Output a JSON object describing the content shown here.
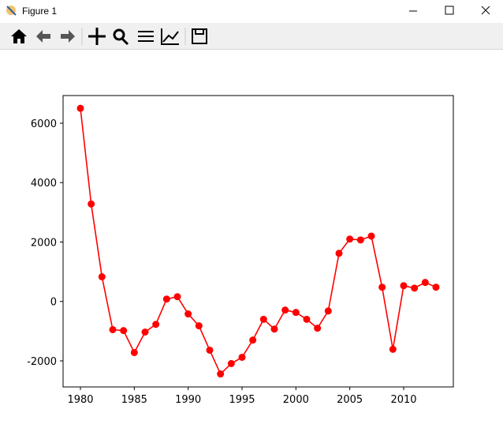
{
  "window": {
    "title": "Figure 1"
  },
  "chart_data": {
    "type": "line",
    "color": "#ff0000",
    "x": [
      1980,
      1981,
      1982,
      1983,
      1984,
      1985,
      1986,
      1987,
      1988,
      1989,
      1990,
      1991,
      1992,
      1993,
      1994,
      1995,
      1996,
      1997,
      1998,
      1999,
      2000,
      2001,
      2002,
      2003,
      2004,
      2005,
      2006,
      2007,
      2008,
      2009,
      2010,
      2011,
      2012,
      2013
    ],
    "values": [
      6500,
      3280,
      830,
      -950,
      -980,
      -1720,
      -1030,
      -770,
      80,
      160,
      -420,
      -820,
      -1640,
      -2440,
      -2090,
      -1880,
      -1300,
      -600,
      -930,
      -290,
      -370,
      -600,
      -900,
      -320,
      1620,
      2100,
      2070,
      2200,
      480,
      -1610,
      530,
      450,
      640,
      480
    ],
    "xlim": [
      1978.39,
      2014.61
    ],
    "xticks": [
      1980,
      1985,
      1990,
      1995,
      2000,
      2005,
      2010
    ],
    "ylim": [
      -2877,
      6930
    ],
    "yticks": [
      -2000,
      0,
      2000,
      4000,
      6000
    ],
    "markers": true
  }
}
